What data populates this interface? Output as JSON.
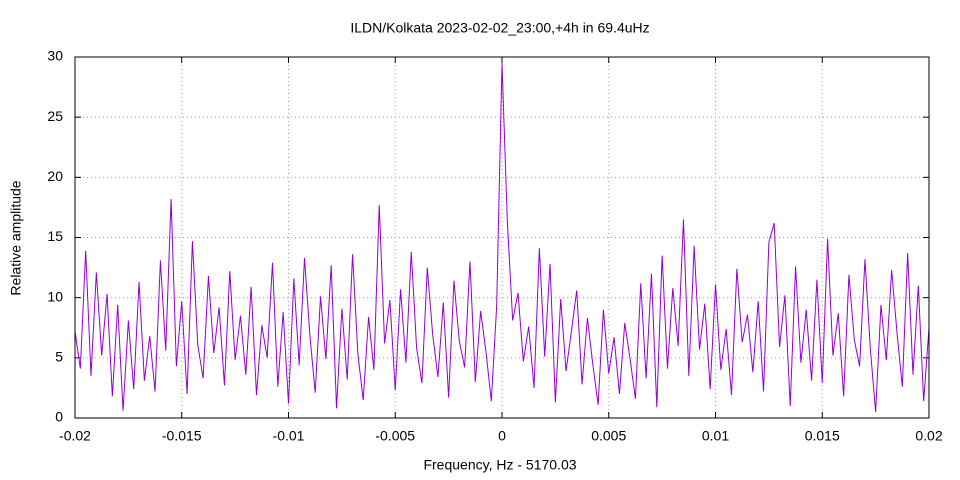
{
  "chart_data": {
    "type": "line",
    "title": "ILDN/Kolkata 2023-02-02_23:00,+4h in 69.4uHz",
    "x_label": "Frequency, Hz - 5170.03",
    "y_label": "Relative amplitude",
    "xlim": [
      -0.02,
      0.02
    ],
    "ylim": [
      0,
      30
    ],
    "xticks": [
      -0.02,
      -0.015,
      -0.01,
      -0.005,
      0,
      0.005,
      0.01,
      0.015,
      0.02
    ],
    "yticks": [
      0,
      5,
      10,
      15,
      20,
      25,
      30
    ],
    "grid": true,
    "x": [
      -0.02,
      -0.01975,
      -0.0195,
      -0.01925,
      -0.019,
      -0.01875,
      -0.0185,
      -0.01825,
      -0.018,
      -0.01775,
      -0.0175,
      -0.01725,
      -0.017,
      -0.01675,
      -0.0165,
      -0.01625,
      -0.016,
      -0.01575,
      -0.0155,
      -0.01525,
      -0.015,
      -0.01475,
      -0.0145,
      -0.01425,
      -0.014,
      -0.01375,
      -0.0135,
      -0.01325,
      -0.013,
      -0.01275,
      -0.0125,
      -0.01225,
      -0.012,
      -0.01175,
      -0.0115,
      -0.01125,
      -0.011,
      -0.01075,
      -0.0105,
      -0.01025,
      -0.01,
      -0.00975,
      -0.0095,
      -0.00925,
      -0.009,
      -0.00875,
      -0.0085,
      -0.00825,
      -0.008,
      -0.00775,
      -0.0075,
      -0.00725,
      -0.007,
      -0.00675,
      -0.0065,
      -0.00625,
      -0.006,
      -0.00575,
      -0.0055,
      -0.00525,
      -0.005,
      -0.00475,
      -0.0045,
      -0.00425,
      -0.004,
      -0.00375,
      -0.0035,
      -0.00325,
      -0.003,
      -0.00275,
      -0.0025,
      -0.00225,
      -0.002,
      -0.00175,
      -0.0015,
      -0.00125,
      -0.001,
      -0.00075,
      -0.0005,
      -0.00025,
      0,
      0.00025,
      0.0005,
      0.00075,
      0.001,
      0.00125,
      0.0015,
      0.00175,
      0.002,
      0.00225,
      0.0025,
      0.00275,
      0.003,
      0.00325,
      0.0035,
      0.00375,
      0.004,
      0.00425,
      0.0045,
      0.00475,
      0.005,
      0.00525,
      0.0055,
      0.00575,
      0.006,
      0.00625,
      0.0065,
      0.00675,
      0.007,
      0.00725,
      0.0075,
      0.00775,
      0.008,
      0.00825,
      0.0085,
      0.00875,
      0.009,
      0.00925,
      0.0095,
      0.00975,
      0.01,
      0.01025,
      0.0105,
      0.01075,
      0.011,
      0.01125,
      0.0115,
      0.01175,
      0.012,
      0.01225,
      0.0125,
      0.01275,
      0.013,
      0.01325,
      0.0135,
      0.01375,
      0.014,
      0.01425,
      0.0145,
      0.01475,
      0.015,
      0.01525,
      0.0155,
      0.01575,
      0.016,
      0.01625,
      0.0165,
      0.01675,
      0.017,
      0.01725,
      0.0175,
      0.01775,
      0.018,
      0.01825,
      0.0185,
      0.01875,
      0.019,
      0.01925,
      0.0195,
      0.01975,
      0.02
    ],
    "series": [
      {
        "color": "#9400d3",
        "values": [
          7.2,
          4.1,
          13.9,
          3.5,
          12.1,
          5.2,
          10.3,
          1.8,
          9.4,
          0.6,
          8.1,
          2.4,
          11.3,
          3.1,
          6.8,
          2.2,
          13.1,
          5.6,
          18.2,
          4.3,
          9.7,
          2.0,
          14.7,
          6.1,
          3.3,
          11.8,
          5.4,
          9.2,
          2.7,
          12.2,
          4.8,
          8.5,
          3.6,
          10.9,
          1.9,
          7.7,
          5.0,
          12.9,
          2.6,
          8.8,
          1.2,
          11.6,
          4.4,
          13.3,
          6.9,
          2.1,
          10.1,
          4.9,
          12.7,
          0.8,
          9.1,
          3.2,
          13.6,
          5.3,
          1.5,
          8.4,
          4.0,
          17.7,
          6.2,
          9.8,
          2.3,
          10.7,
          4.6,
          13.8,
          5.8,
          2.9,
          12.5,
          7.0,
          3.4,
          9.6,
          1.7,
          11.4,
          6.4,
          4.2,
          13.0,
          3.0,
          8.9,
          5.5,
          1.4,
          9.3,
          29.5,
          16.3,
          8.1,
          10.4,
          4.7,
          7.6,
          2.5,
          14.1,
          5.1,
          12.8,
          1.3,
          9.9,
          3.9,
          7.2,
          10.6,
          2.8,
          8.3,
          4.5,
          1.1,
          9.0,
          3.7,
          6.7,
          2.0,
          7.9,
          4.9,
          1.6,
          11.2,
          3.3,
          12.0,
          0.9,
          13.5,
          4.1,
          10.8,
          6.0,
          16.5,
          3.5,
          14.3,
          5.7,
          9.5,
          2.4,
          11.1,
          4.0,
          7.4,
          1.9,
          12.4,
          6.3,
          8.6,
          3.8,
          9.7,
          2.2,
          14.6,
          16.2,
          5.9,
          10.2,
          1.0,
          12.6,
          4.6,
          9.0,
          3.1,
          11.5,
          2.9,
          14.9,
          5.2,
          8.7,
          1.8,
          11.9,
          6.5,
          4.3,
          13.2,
          5.8,
          0.5,
          9.4,
          4.8,
          12.3,
          7.1,
          2.6,
          13.7,
          3.6,
          11.0,
          1.4,
          7.5
        ]
      }
    ]
  }
}
